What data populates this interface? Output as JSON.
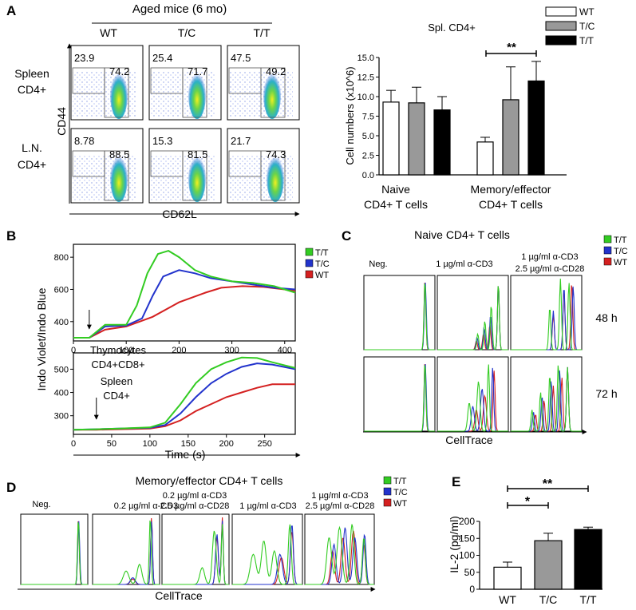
{
  "panel_labels": {
    "a": "A",
    "b": "B",
    "c": "C",
    "d": "D",
    "e": "E"
  },
  "colors": {
    "wt": "#d42020",
    "tc": "#2233cc",
    "tt": "#33cc22",
    "bar_wt": "#ffffff",
    "bar_tc": "#999999",
    "bar_tt": "#000000"
  },
  "panel_a": {
    "header": "Aged mice (6 mo)",
    "genotypes": [
      "WT",
      "T/C",
      "T/T"
    ],
    "row_labels": [
      [
        "Spleen",
        "CD4+"
      ],
      [
        "L.N.",
        "CD4+"
      ]
    ],
    "y_axis": "CD44",
    "x_axis": "CD62L",
    "percentages": [
      [
        [
          "23.9",
          "74.2"
        ],
        [
          "25.4",
          "71.7"
        ],
        [
          "47.5",
          "49.2"
        ]
      ],
      [
        [
          "8.78",
          "88.5"
        ],
        [
          "15.3",
          "81.5"
        ],
        [
          "21.7",
          "74.3"
        ]
      ]
    ]
  },
  "chart_data": [
    {
      "type": "bar",
      "panel": "A",
      "title": "Spl. CD4+",
      "ylabel": "Cell numbers (x10^6)",
      "ylim": [
        0,
        15
      ],
      "yticks": [
        "0.0",
        "2.5",
        "5.0",
        "7.5",
        "10.0",
        "12.5",
        "15.0"
      ],
      "group_labels": [
        [
          "Naive",
          "CD4+ T cells"
        ],
        [
          "Memory/effector",
          "CD4+ T cells"
        ]
      ],
      "legend": [
        "WT",
        "T/C",
        "T/T"
      ],
      "series": [
        {
          "name": "WT",
          "values": [
            9.3,
            4.2
          ],
          "errors": [
            1.5,
            0.6
          ]
        },
        {
          "name": "T/C",
          "values": [
            9.2,
            9.6
          ],
          "errors": [
            2.0,
            4.2
          ]
        },
        {
          "name": "T/T",
          "values": [
            8.3,
            12.0
          ],
          "errors": [
            1.7,
            2.5
          ]
        }
      ],
      "significance": "**"
    },
    {
      "type": "line",
      "panel": "B",
      "subpanel": "Thymocytes CD4+CD8+",
      "ylabel": "Indo Violet/Indo Blue",
      "ylim": [
        280,
        880
      ],
      "yticks": [
        "400",
        "600",
        "800"
      ],
      "xlim": [
        0,
        420
      ],
      "xticks": [
        "0",
        "100",
        "200",
        "300",
        "400"
      ],
      "legend": [
        "T/T",
        "T/C",
        "WT"
      ],
      "series": [
        {
          "name": "T/T",
          "x": [
            0,
            30,
            60,
            100,
            120,
            140,
            160,
            180,
            200,
            230,
            260,
            300,
            340,
            380,
            420
          ],
          "y": [
            300,
            300,
            380,
            380,
            500,
            700,
            820,
            840,
            800,
            720,
            680,
            650,
            640,
            620,
            580
          ]
        },
        {
          "name": "T/C",
          "x": [
            0,
            30,
            60,
            100,
            130,
            150,
            170,
            200,
            230,
            260,
            300,
            340,
            380,
            420
          ],
          "y": [
            300,
            300,
            370,
            375,
            420,
            560,
            680,
            720,
            700,
            670,
            650,
            630,
            610,
            600
          ]
        },
        {
          "name": "WT",
          "x": [
            0,
            30,
            60,
            100,
            150,
            200,
            250,
            280,
            320,
            360,
            400,
            420
          ],
          "y": [
            300,
            300,
            350,
            370,
            430,
            520,
            580,
            610,
            620,
            615,
            600,
            590
          ]
        }
      ],
      "annotations": [
        "Thymocytes",
        "CD4+CD8+"
      ],
      "stimulus_x": 30
    },
    {
      "type": "line",
      "panel": "B",
      "subpanel": "Spleen CD4+",
      "ylabel": "Indo Violet/Indo Blue",
      "ylim": [
        220,
        570
      ],
      "yticks": [
        "300",
        "400",
        "500"
      ],
      "xlim": [
        0,
        290
      ],
      "xticks": [
        "0",
        "50",
        "100",
        "150",
        "200",
        "250"
      ],
      "xlabel": "Time (s)",
      "series": [
        {
          "name": "T/T",
          "x": [
            0,
            30,
            60,
            100,
            120,
            140,
            160,
            180,
            200,
            220,
            240,
            260,
            290
          ],
          "y": [
            240,
            242,
            245,
            250,
            270,
            350,
            440,
            500,
            530,
            550,
            548,
            530,
            505
          ]
        },
        {
          "name": "T/C",
          "x": [
            0,
            30,
            60,
            100,
            120,
            140,
            160,
            180,
            200,
            220,
            240,
            260,
            290
          ],
          "y": [
            240,
            242,
            245,
            248,
            260,
            310,
            380,
            440,
            480,
            510,
            525,
            520,
            500
          ]
        },
        {
          "name": "WT",
          "x": [
            0,
            30,
            60,
            100,
            120,
            140,
            160,
            180,
            200,
            220,
            240,
            260,
            290
          ],
          "y": [
            240,
            240,
            242,
            245,
            255,
            280,
            320,
            350,
            380,
            400,
            420,
            435,
            435
          ]
        }
      ],
      "annotations": [
        "Spleen",
        "CD4+"
      ],
      "stimulus_x": 30
    },
    {
      "type": "bar",
      "panel": "E",
      "ylabel": "IL-2 (pg/ml)",
      "ylim": [
        0,
        200
      ],
      "yticks": [
        "0",
        "50",
        "100",
        "150",
        "200"
      ],
      "categories": [
        "WT",
        "T/C",
        "T/T"
      ],
      "values": [
        65,
        143,
        176
      ],
      "errors": [
        15,
        22,
        7
      ],
      "significance": [
        "*",
        "**"
      ]
    }
  ],
  "panel_c": {
    "title": "Naive CD4+ T cells",
    "legend": [
      "T/T",
      "T/C",
      "WT"
    ],
    "conditions": [
      "Neg.",
      "1 µg/ml α-CD3",
      "1 µg/ml α-CD3",
      "2.5 µg/ml α-CD28"
    ],
    "row_labels": [
      "48 h",
      "72 h"
    ],
    "x_axis": "CellTrace"
  },
  "panel_d": {
    "title": "Memory/effector CD4+ T cells",
    "legend": [
      "T/T",
      "T/C",
      "WT"
    ],
    "conditions": [
      [
        "Neg."
      ],
      [
        "0.2 µg/ml α-CD3"
      ],
      [
        "0.2 µg/ml α-CD3",
        "2.5 µg/ml α-CD28"
      ],
      [
        "1 µg/ml α-CD3"
      ],
      [
        "1 µg/ml α-CD3",
        "2.5 µg/ml α-CD28"
      ]
    ],
    "x_axis": "CellTrace"
  }
}
